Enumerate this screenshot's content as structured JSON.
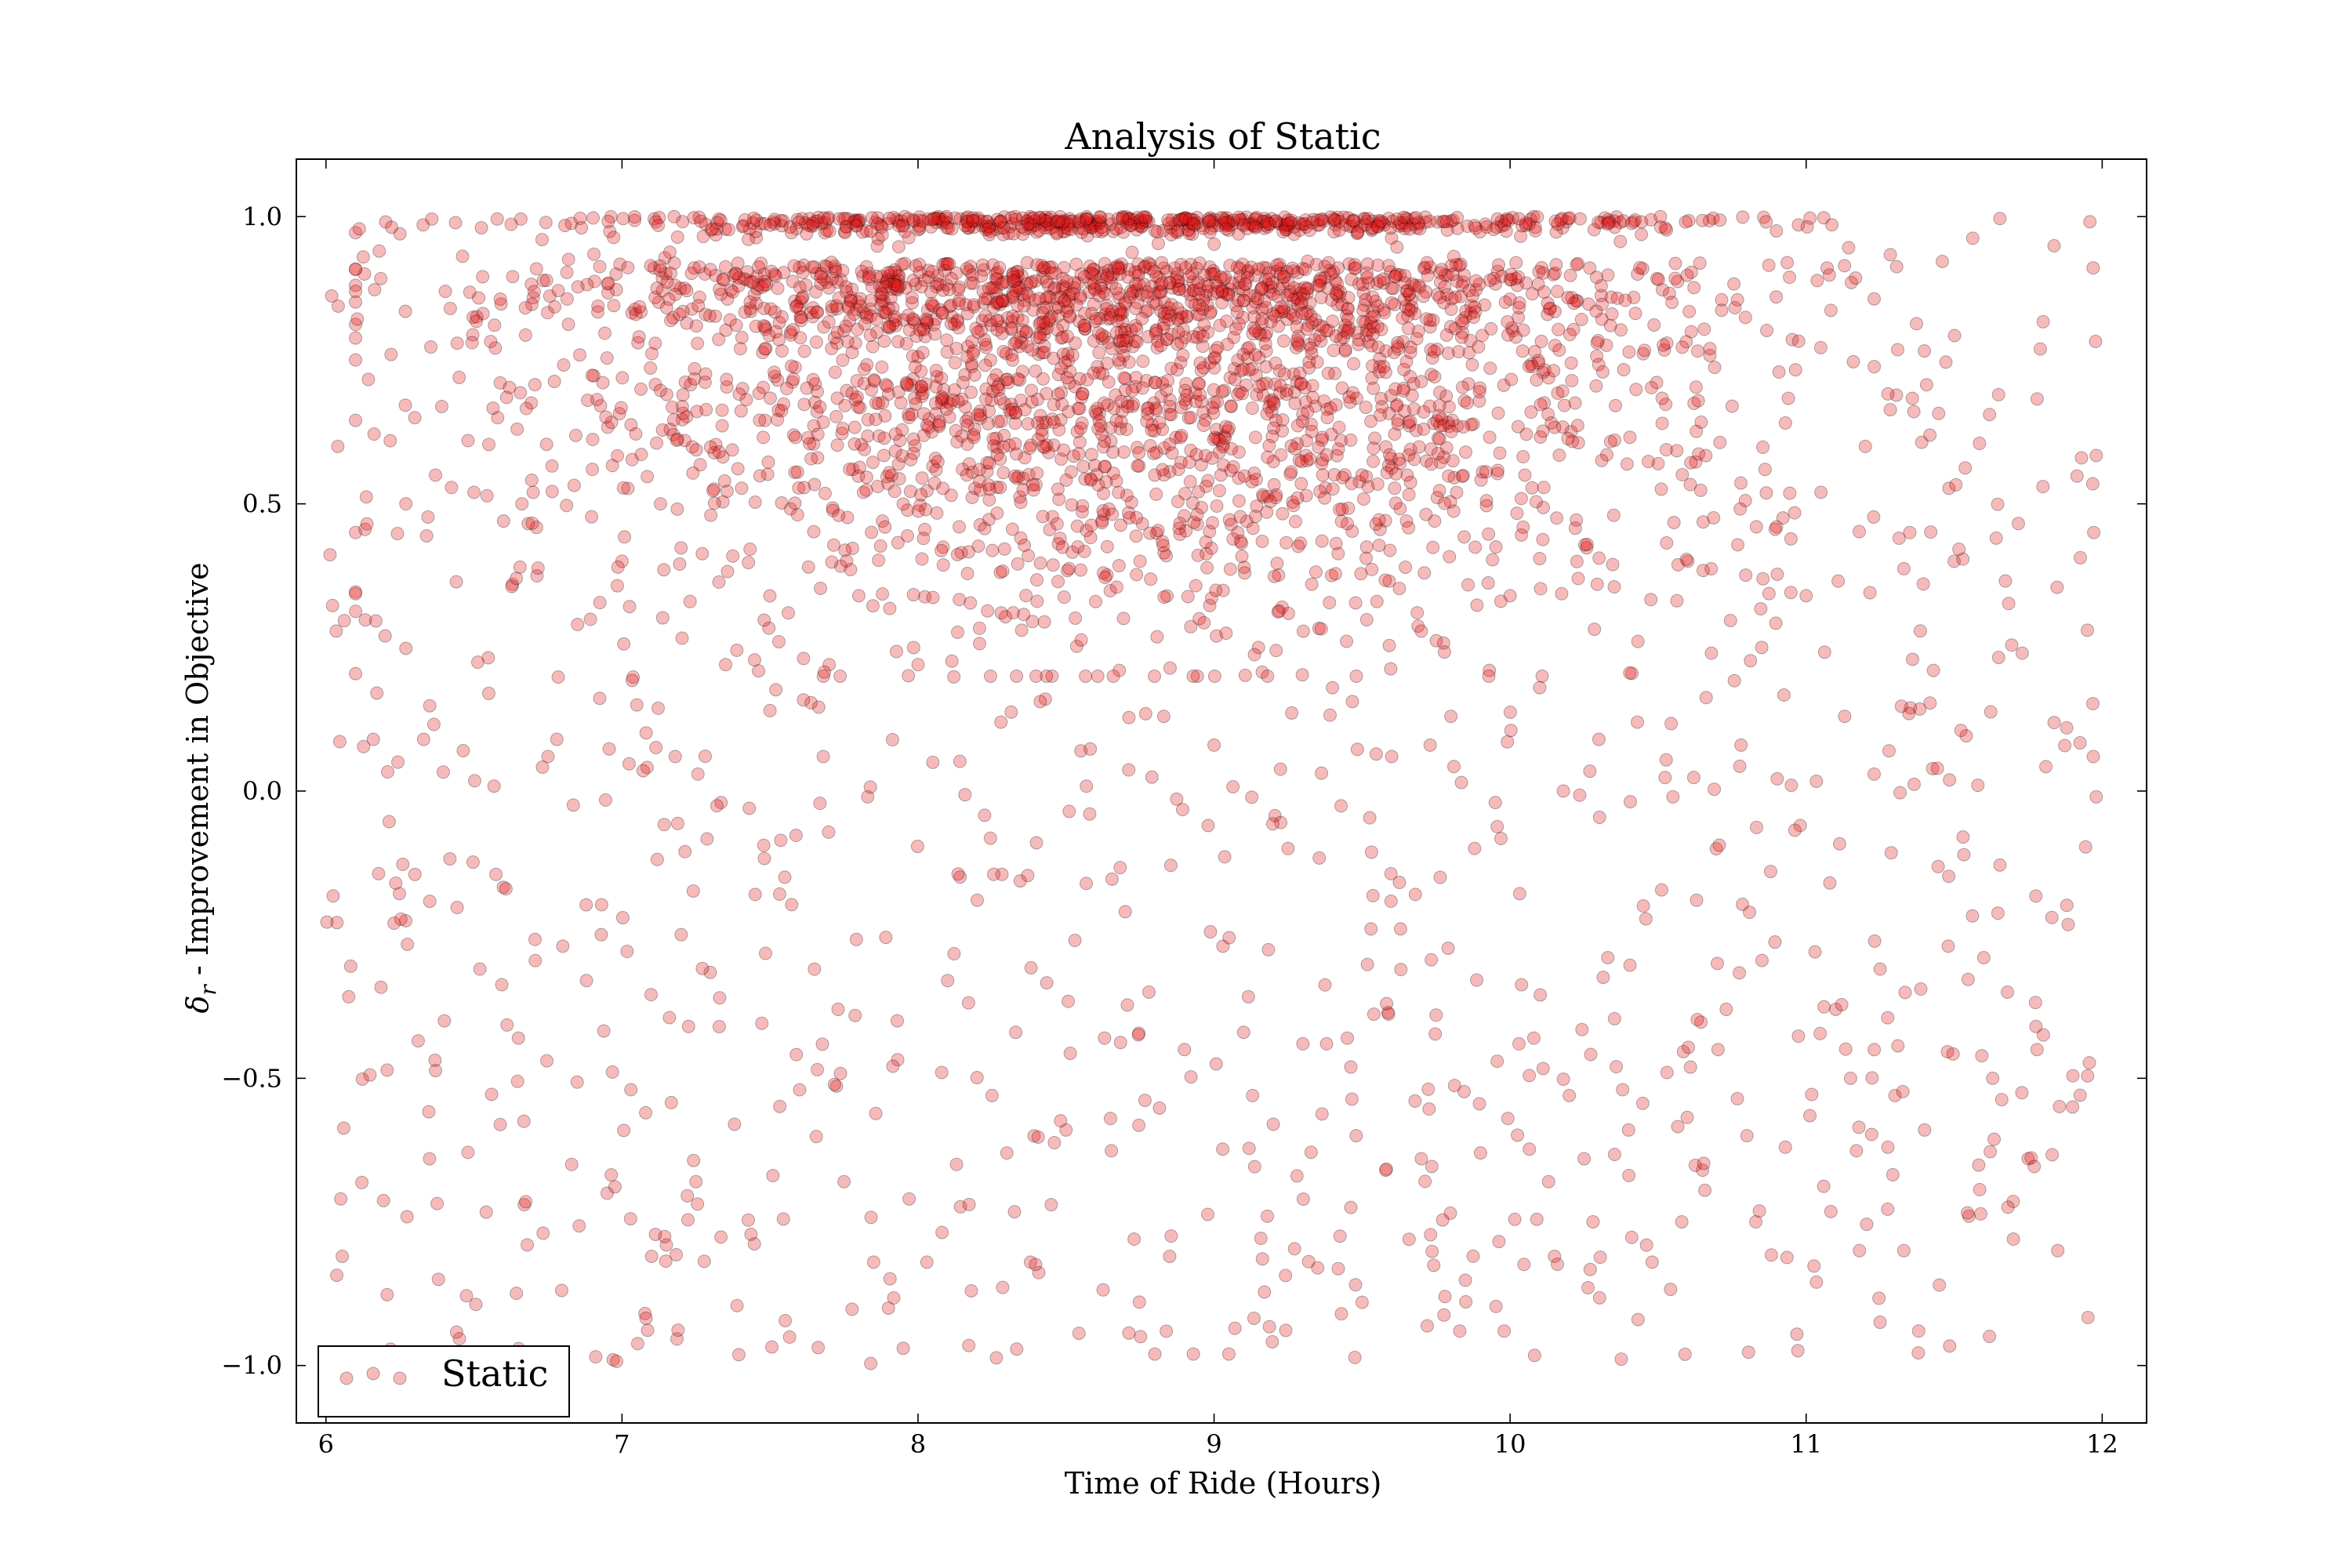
{
  "chart_data": {
    "type": "scatter",
    "title": "Analysis of Static",
    "xlabel": "Time of Ride (Hours)",
    "ylabel_symbol": "δ",
    "ylabel_subscript": "r",
    "ylabel_rest": " - Improvement in Objective",
    "xlim": [
      5.9,
      12.15
    ],
    "ylim": [
      -1.1,
      1.1
    ],
    "xticks": [
      6,
      7,
      8,
      9,
      10,
      11,
      12
    ],
    "xtick_labels": [
      "6",
      "7",
      "8",
      "9",
      "10",
      "11",
      "12"
    ],
    "yticks": [
      -1.0,
      -0.5,
      0.0,
      0.5,
      1.0
    ],
    "ytick_labels": [
      "−1.0",
      "−0.5",
      "0.0",
      "0.5",
      "1.0"
    ],
    "grid": false,
    "legend_position": "bottom-left",
    "series": [
      {
        "name": "Static",
        "marker_color": "#e31a1c",
        "marker_opacity": 0.3,
        "approx_point_count": 4000,
        "points": [
          [
            6.04,
            0.6
          ],
          [
            6.05,
            -0.71
          ],
          [
            6.1,
            0.45
          ],
          [
            6.13,
            0.9
          ],
          [
            6.16,
            0.09
          ],
          [
            6.18,
            0.94
          ],
          [
            6.2,
            0.27
          ],
          [
            6.22,
            0.76
          ],
          [
            6.23,
            -0.23
          ],
          [
            6.25,
            0.97
          ],
          [
            6.27,
            0.5
          ],
          [
            6.3,
            0.65
          ],
          [
            6.33,
            0.09
          ],
          [
            6.35,
            -0.64
          ],
          [
            6.37,
            0.55
          ],
          [
            6.38,
            -0.85
          ],
          [
            6.4,
            -0.4
          ],
          [
            6.42,
            0.84
          ],
          [
            6.45,
            0.72
          ],
          [
            6.48,
            0.61
          ],
          [
            6.5,
            0.52
          ],
          [
            6.52,
            -0.31
          ],
          [
            6.55,
            0.17
          ],
          [
            6.58,
            0.65
          ],
          [
            6.6,
            0.47
          ],
          [
            6.63,
            0.36
          ],
          [
            6.65,
            -0.43
          ],
          [
            6.67,
            -0.72
          ],
          [
            6.68,
            -0.79
          ],
          [
            6.7,
            0.52
          ],
          [
            6.73,
            0.96
          ],
          [
            6.75,
            0.06
          ],
          [
            6.78,
            0.09
          ],
          [
            6.8,
            -0.27
          ],
          [
            6.83,
            -0.65
          ],
          [
            6.85,
            0.29
          ],
          [
            6.88,
            -0.33
          ],
          [
            6.9,
            0.56
          ],
          [
            6.93,
            -0.25
          ],
          [
            6.95,
            -0.7
          ],
          [
            6.97,
            -0.99
          ],
          [
            6.98,
            0.9
          ],
          [
            7.0,
            0.4
          ],
          [
            7.03,
            -0.52
          ],
          [
            7.05,
            0.15
          ],
          [
            7.08,
            -0.56
          ],
          [
            7.1,
            -0.81
          ],
          [
            7.13,
            0.5
          ],
          [
            7.15,
            -0.79
          ],
          [
            7.18,
            0.06
          ],
          [
            7.2,
            -0.25
          ],
          [
            7.23,
            0.33
          ],
          [
            7.25,
            -0.68
          ],
          [
            7.28,
            0.9
          ],
          [
            7.3,
            0.48
          ],
          [
            7.33,
            -0.36
          ],
          [
            7.35,
            0.22
          ],
          [
            7.38,
            -0.58
          ],
          [
            7.4,
            0.77
          ],
          [
            7.43,
            -0.03
          ],
          [
            7.45,
            -0.18
          ],
          [
            7.48,
            0.84
          ],
          [
            7.5,
            0.14
          ],
          [
            7.53,
            0.26
          ],
          [
            7.55,
            -0.15
          ],
          [
            7.58,
            0.62
          ],
          [
            7.6,
            -0.52
          ],
          [
            7.63,
            0.39
          ],
          [
            7.65,
            -0.31
          ],
          [
            7.68,
            0.06
          ],
          [
            7.7,
            0.22
          ],
          [
            7.73,
            -0.38
          ],
          [
            7.75,
            -0.68
          ],
          [
            7.78,
            0.56
          ],
          [
            7.8,
            0.34
          ],
          [
            7.83,
            -0.01
          ],
          [
            7.85,
            -0.82
          ],
          [
            7.88,
            0.47
          ],
          [
            7.9,
            -0.9
          ],
          [
            7.93,
            -0.4
          ],
          [
            7.95,
            -0.97
          ],
          [
            7.97,
            -0.71
          ],
          [
            8.0,
            0.22
          ],
          [
            8.03,
            -0.82
          ],
          [
            8.05,
            0.05
          ],
          [
            8.08,
            -0.49
          ],
          [
            8.1,
            -0.33
          ],
          [
            8.13,
            -0.65
          ],
          [
            8.15,
            0.56
          ],
          [
            8.18,
            -0.87
          ],
          [
            8.2,
            -0.19
          ],
          [
            8.23,
            0.7
          ],
          [
            8.25,
            -0.53
          ],
          [
            8.28,
            0.12
          ],
          [
            8.3,
            -0.63
          ],
          [
            8.33,
            -0.42
          ],
          [
            8.35,
            0.28
          ],
          [
            8.38,
            -0.82
          ],
          [
            8.4,
            -0.09
          ],
          [
            8.43,
            0.16
          ],
          [
            8.45,
            -0.72
          ],
          [
            8.48,
            0.44
          ],
          [
            8.5,
            -0.59
          ],
          [
            8.53,
            -0.26
          ],
          [
            8.55,
            0.07
          ],
          [
            8.58,
            -0.04
          ],
          [
            8.6,
            0.33
          ],
          [
            8.63,
            -0.43
          ],
          [
            8.65,
            -0.57
          ],
          [
            8.68,
            0.21
          ],
          [
            8.7,
            -0.21
          ],
          [
            8.73,
            -0.78
          ],
          [
            8.75,
            0.4
          ],
          [
            8.78,
            -0.35
          ],
          [
            8.8,
            -0.98
          ],
          [
            8.83,
            0.13
          ],
          [
            8.85,
            -0.81
          ],
          [
            8.88,
            0.56
          ],
          [
            8.9,
            -0.45
          ],
          [
            8.93,
            -0.98
          ],
          [
            8.95,
            0.3
          ],
          [
            8.98,
            -0.06
          ],
          [
            9.0,
            0.08
          ],
          [
            9.03,
            -0.27
          ],
          [
            9.05,
            -0.98
          ],
          [
            9.08,
            0.45
          ],
          [
            9.1,
            -0.42
          ],
          [
            9.13,
            -0.53
          ],
          [
            9.15,
            0.25
          ],
          [
            9.18,
            -0.74
          ],
          [
            9.2,
            -0.58
          ],
          [
            9.23,
            0.32
          ],
          [
            9.25,
            -0.1
          ],
          [
            9.28,
            -0.67
          ],
          [
            9.3,
            -0.44
          ],
          [
            9.33,
            0.36
          ],
          [
            9.35,
            -0.83
          ],
          [
            9.38,
            -0.44
          ],
          [
            9.4,
            0.18
          ],
          [
            9.43,
            -0.91
          ],
          [
            9.45,
            -0.43
          ],
          [
            9.48,
            -0.6
          ],
          [
            9.5,
            -0.89
          ],
          [
            9.53,
            -0.24
          ],
          [
            9.55,
            0.33
          ],
          [
            9.58,
            -0.66
          ],
          [
            9.6,
            0.06
          ],
          [
            9.63,
            -0.24
          ],
          [
            9.65,
            0.47
          ],
          [
            9.68,
            -0.18
          ],
          [
            9.7,
            -0.64
          ],
          [
            9.73,
            0.08
          ],
          [
            9.75,
            -0.39
          ],
          [
            9.78,
            -0.88
          ],
          [
            9.8,
            0.13
          ],
          [
            9.83,
            -0.94
          ],
          [
            9.85,
            0.59
          ],
          [
            9.88,
            -0.1
          ],
          [
            9.9,
            -0.63
          ],
          [
            9.93,
            0.21
          ],
          [
            9.95,
            -0.02
          ],
          [
            9.98,
            -0.94
          ],
          [
            10.0,
            0.34
          ],
          [
            10.03,
            -0.44
          ],
          [
            10.05,
            0.55
          ],
          [
            10.08,
            -0.43
          ],
          [
            10.1,
            0.18
          ],
          [
            10.13,
            -0.68
          ],
          [
            10.15,
            -0.81
          ],
          [
            10.18,
            0.0
          ],
          [
            10.2,
            -0.53
          ],
          [
            10.23,
            0.37
          ],
          [
            10.25,
            -0.64
          ],
          [
            10.28,
            -0.75
          ],
          [
            10.3,
            0.09
          ],
          [
            10.33,
            -0.29
          ],
          [
            10.35,
            0.48
          ],
          [
            10.38,
            -0.52
          ],
          [
            10.4,
            -0.59
          ],
          [
            10.43,
            0.12
          ],
          [
            10.45,
            -0.2
          ],
          [
            10.48,
            -0.82
          ],
          [
            10.5,
            0.57
          ],
          [
            10.53,
            -0.49
          ],
          [
            10.55,
            -0.01
          ],
          [
            10.58,
            -0.75
          ],
          [
            10.6,
            0.4
          ],
          [
            10.63,
            -0.19
          ],
          [
            10.65,
            -0.66
          ],
          [
            10.68,
            0.24
          ],
          [
            10.7,
            -0.3
          ],
          [
            10.73,
            -0.38
          ],
          [
            10.75,
            0.67
          ],
          [
            10.78,
            0.08
          ],
          [
            10.8,
            -0.6
          ],
          [
            10.83,
            -0.75
          ],
          [
            10.85,
            0.25
          ],
          [
            10.88,
            -0.14
          ],
          [
            10.9,
            0.46
          ],
          [
            10.93,
            -0.62
          ],
          [
            10.95,
            0.01
          ],
          [
            10.98,
            -0.06
          ],
          [
            11.0,
            0.34
          ],
          [
            11.03,
            -0.28
          ],
          [
            11.05,
            0.52
          ],
          [
            11.08,
            -0.16
          ],
          [
            11.1,
            -0.38
          ],
          [
            11.13,
            0.13
          ],
          [
            11.15,
            -0.5
          ],
          [
            11.18,
            -0.8
          ],
          [
            11.2,
            0.6
          ],
          [
            11.23,
            -0.45
          ],
          [
            11.25,
            -0.31
          ],
          [
            11.28,
            0.07
          ],
          [
            11.3,
            -0.53
          ],
          [
            11.33,
            -0.8
          ],
          [
            11.35,
            0.45
          ],
          [
            11.38,
            -0.94
          ],
          [
            11.4,
            -0.59
          ],
          [
            11.43,
            0.21
          ],
          [
            11.45,
            -0.86
          ],
          [
            11.48,
            -0.27
          ],
          [
            11.5,
            0.4
          ],
          [
            11.53,
            -0.08
          ],
          [
            11.55,
            -0.74
          ],
          [
            11.58,
            0.01
          ],
          [
            11.6,
            -0.29
          ],
          [
            11.63,
            -0.5
          ],
          [
            11.65,
            0.69
          ],
          [
            11.68,
            -0.35
          ],
          [
            11.7,
            -0.78
          ],
          [
            11.73,
            0.24
          ],
          [
            11.75,
            -0.64
          ],
          [
            11.78,
            -0.45
          ],
          [
            11.8,
            0.53
          ],
          [
            11.83,
            -0.22
          ],
          [
            11.85,
            -0.8
          ],
          [
            11.88,
            0.11
          ],
          [
            11.9,
            -0.55
          ],
          [
            11.93,
            0.58
          ],
          [
            11.95,
            0.28
          ],
          [
            11.97,
            0.06
          ],
          [
            11.98,
            -0.01
          ]
        ]
      }
    ]
  },
  "legend": {
    "label": "Static"
  }
}
